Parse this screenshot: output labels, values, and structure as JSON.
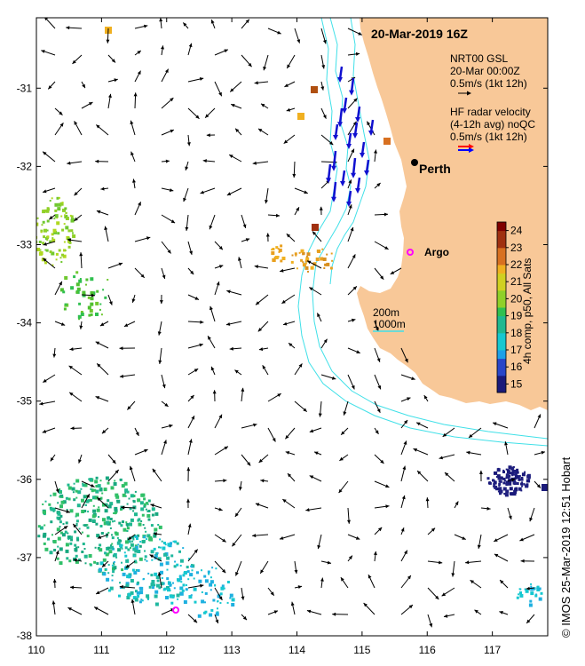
{
  "title": "20-Mar-2019 16Z",
  "legend": {
    "gsl_line1": "NRT00 GSL",
    "gsl_line2": "20-Mar 00:00Z",
    "gsl_line3": "0.5m/s (1kt 12h)",
    "hf_line1": "HF radar velocity",
    "hf_line2": "(4-12h avg) noQC",
    "hf_line3": "0.5m/s (1kt 12h)"
  },
  "places": {
    "perth": "Perth",
    "argo": "Argo"
  },
  "contours": {
    "label1": "200m",
    "label2": "1000m",
    "color": "#40e0e8"
  },
  "colorbar": {
    "label": "4h comp, p50, All Sats",
    "ticks": [
      "24",
      "23",
      "22",
      "21",
      "20",
      "19",
      "18",
      "17",
      "16",
      "15"
    ],
    "min": 14.5,
    "max": 24.5
  },
  "axes": {
    "x_ticks": [
      "110",
      "111",
      "112",
      "113",
      "114",
      "115",
      "116",
      "117"
    ],
    "y_ticks": [
      "-31",
      "-32",
      "-33",
      "-34",
      "-35",
      "-36",
      "-37",
      "-38"
    ],
    "xlim": [
      110,
      117.85
    ],
    "ylim": [
      -38,
      -30.1
    ]
  },
  "copyright": "© IMOS 25-Mar-2019 12:51 Hobart",
  "colors": {
    "land": "#f8c898",
    "radar_arrow": "#1010d0",
    "radar_legend_red": "#ff0000",
    "radar_legend_blue": "#0000ff",
    "marker": "#ff00ff"
  }
}
